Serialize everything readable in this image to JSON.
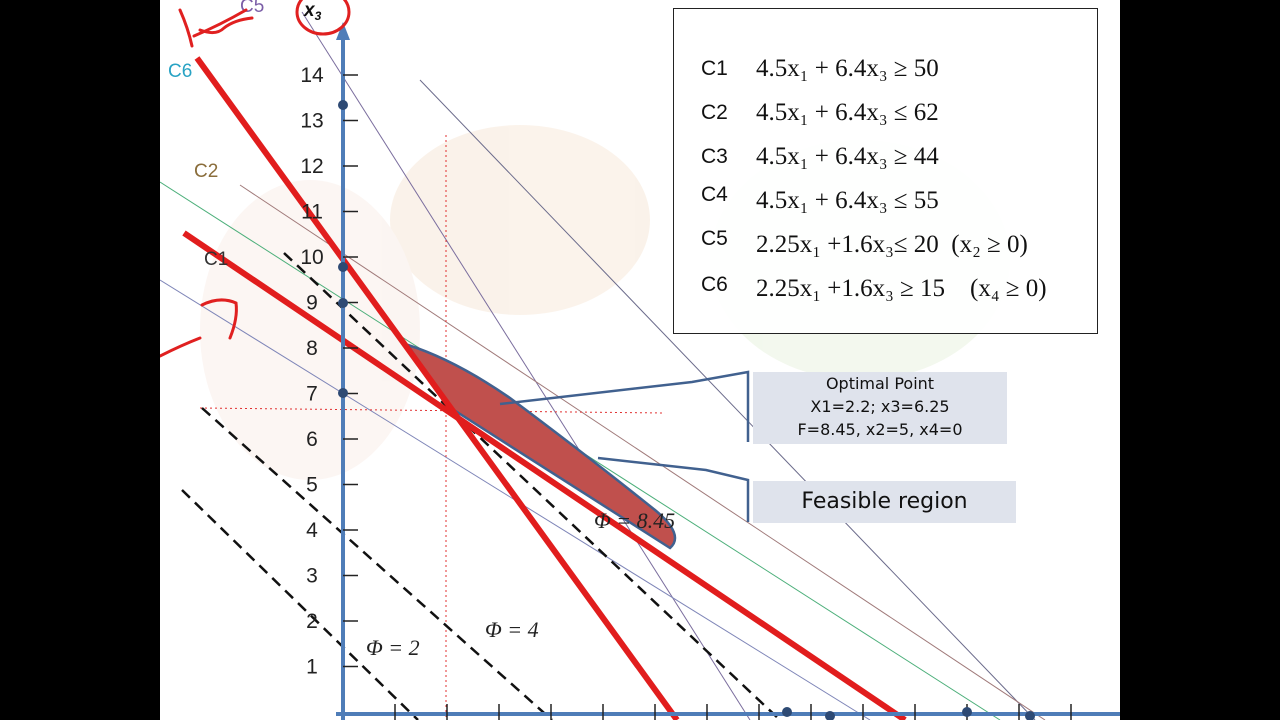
{
  "axis": {
    "y_label": "x",
    "y_label_sub": "3"
  },
  "y_ticks": [
    "1",
    "2",
    "3",
    "4",
    "5",
    "6",
    "7",
    "8",
    "9",
    "10",
    "11",
    "12",
    "13",
    "14"
  ],
  "line_labels": {
    "c1": "C1",
    "c2": "C2",
    "c5": "C5",
    "c6": "C6"
  },
  "constraints": [
    {
      "label": "C1",
      "expr": "4.5x₁ + 6.4x₃ ≥ 50"
    },
    {
      "label": "C2",
      "expr": "4.5x₁ + 6.4x₃ ≤ 62"
    },
    {
      "label": "C3",
      "expr": "4.5x₁ + 6.4x₃ ≥ 44"
    },
    {
      "label": "C4",
      "expr": "4.5x₁ + 6.4x₃ ≤ 55"
    },
    {
      "label": "C5",
      "expr": "2.25x₁ +1.6x₃≤ 20  (x₂ ≥ 0)"
    },
    {
      "label": "C6",
      "expr": "2.25x₁ +1.6x₃ ≥ 15    (x₄ ≥ 0)"
    }
  ],
  "optimal_point": {
    "title": "Optimal Point",
    "line1": "X1=2.2; x3=6.25",
    "line2": "F=8.45, x2=5, x4=0"
  },
  "feasible_label": "Feasible region",
  "objective_labels": {
    "phi2": "Φ = 2",
    "phi4": "Φ = 4",
    "phi845": "Φ = 8.45"
  },
  "colors": {
    "axis": "#4f7db8",
    "binding_constraint": "#e11d1d",
    "feasible_region": "#c0504d",
    "ink_annotation": "#e02020",
    "c2": "#8a6d3b",
    "c5": "#7b5ea7",
    "c6": "#29a3c4"
  }
}
